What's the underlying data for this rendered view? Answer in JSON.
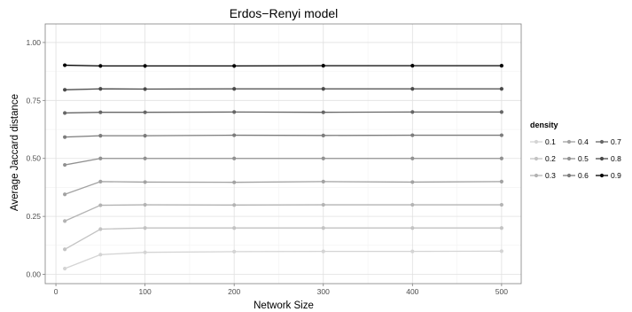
{
  "chart_data": {
    "type": "line",
    "title": "Erdos−Renyi model",
    "xlabel": "Network Size",
    "ylabel": "Average Jaccard distance",
    "x": [
      10,
      50,
      100,
      200,
      300,
      400,
      500
    ],
    "x_ticks": [
      0,
      100,
      200,
      300,
      400,
      500
    ],
    "x_tick_labels": [
      "0",
      "100",
      "200",
      "300",
      "400",
      "500"
    ],
    "xlim": [
      -12,
      522
    ],
    "y_ticks": [
      0,
      0.25,
      0.5,
      0.75,
      1.0
    ],
    "y_tick_labels": [
      "0.00",
      "0.25",
      "0.50",
      "0.75",
      "1.00"
    ],
    "ylim": [
      -0.04,
      1.08
    ],
    "grid": true,
    "legend": {
      "title": "density",
      "position": "right",
      "columns": 3
    },
    "series": [
      {
        "name": "0.1",
        "color": "#d4d4d4",
        "values": [
          0.025,
          0.085,
          0.095,
          0.098,
          0.099,
          0.099,
          0.1
        ]
      },
      {
        "name": "0.2",
        "color": "#c3c3c3",
        "values": [
          0.108,
          0.195,
          0.2,
          0.2,
          0.2,
          0.2,
          0.2
        ]
      },
      {
        "name": "0.3",
        "color": "#b3b3b3",
        "values": [
          0.23,
          0.298,
          0.3,
          0.299,
          0.3,
          0.3,
          0.3
        ]
      },
      {
        "name": "0.4",
        "color": "#a2a2a2",
        "values": [
          0.345,
          0.4,
          0.398,
          0.397,
          0.4,
          0.398,
          0.4
        ]
      },
      {
        "name": "0.5",
        "color": "#919191",
        "values": [
          0.472,
          0.5,
          0.5,
          0.5,
          0.5,
          0.5,
          0.5
        ]
      },
      {
        "name": "0.6",
        "color": "#7c7c7c",
        "values": [
          0.592,
          0.598,
          0.598,
          0.6,
          0.599,
          0.6,
          0.6
        ]
      },
      {
        "name": "0.7",
        "color": "#666666",
        "values": [
          0.696,
          0.699,
          0.699,
          0.7,
          0.699,
          0.7,
          0.7
        ]
      },
      {
        "name": "0.8",
        "color": "#4a4a4a",
        "values": [
          0.796,
          0.8,
          0.799,
          0.8,
          0.8,
          0.8,
          0.8
        ]
      },
      {
        "name": "0.9",
        "color": "#000000",
        "values": [
          0.902,
          0.899,
          0.899,
          0.899,
          0.9,
          0.9,
          0.9
        ]
      }
    ]
  }
}
